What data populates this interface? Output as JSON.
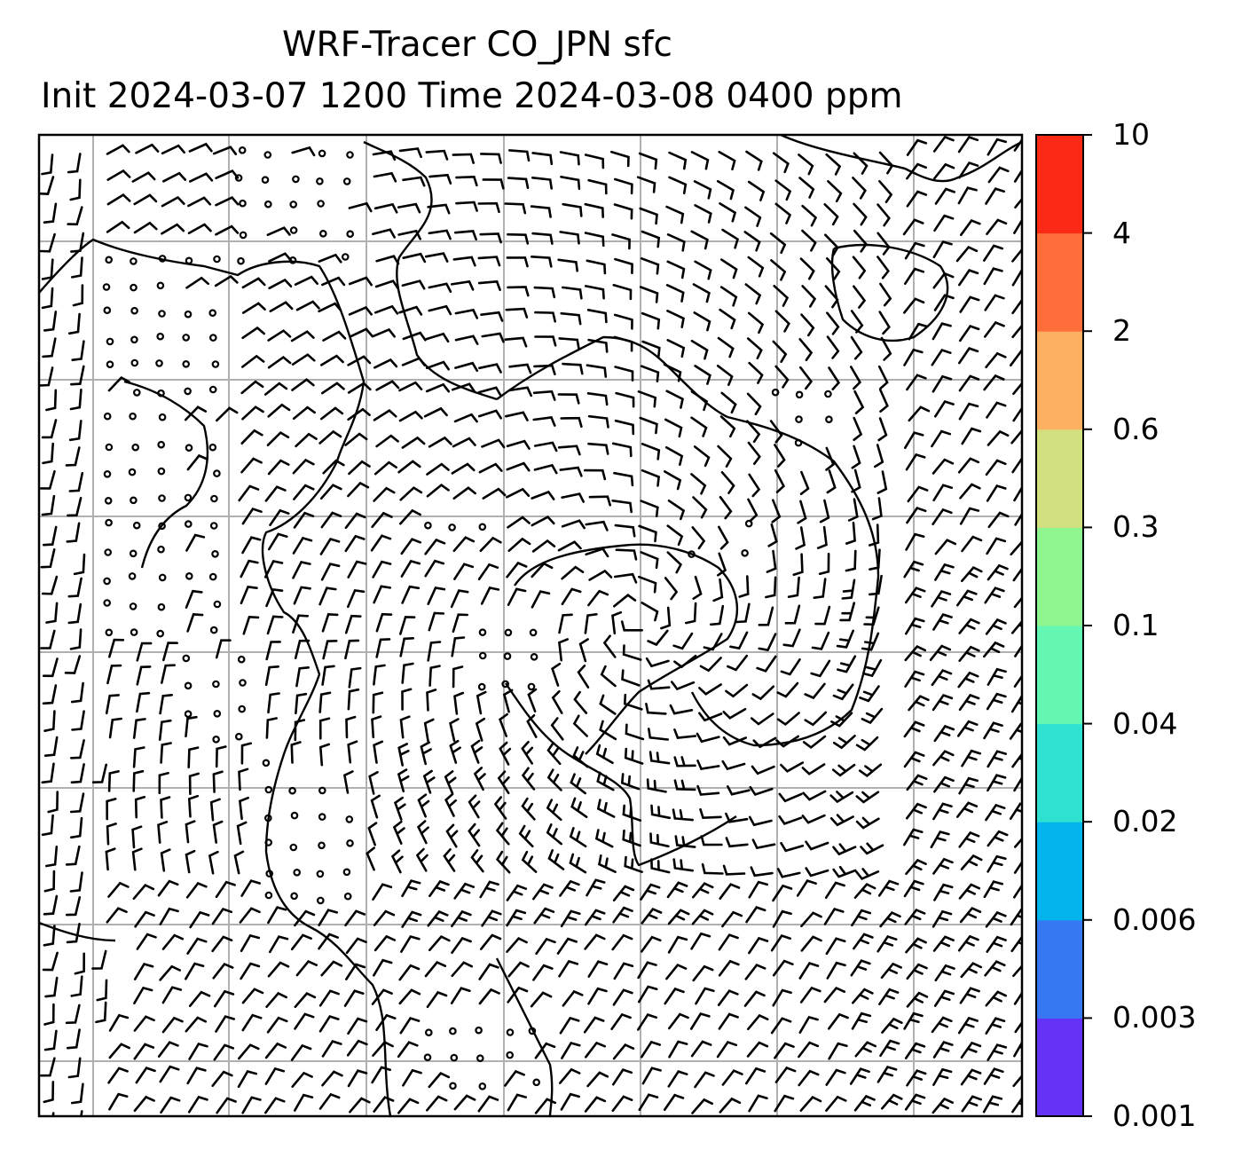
{
  "title_line1": "WRF-Tracer CO_JPN sfc",
  "title_line2": "Init 2024-03-07 1200 Time 2024-03-08 0400 ppm",
  "colorbar": {
    "levels": [
      "0.001",
      "0.003",
      "0.006",
      "0.02",
      "0.04",
      "0.1",
      "0.3",
      "0.6",
      "2",
      "4",
      "10"
    ],
    "colors": [
      "#6433f7",
      "#3778f2",
      "#02b4ec",
      "#2ee1d0",
      "#64f7b4",
      "#8ff58e",
      "#d3e07f",
      "#fdb061",
      "#fe6d3a",
      "#fc2916"
    ]
  },
  "map": {
    "gridline_color": "#b0b0b0",
    "coastline_color": "#000000",
    "barb_color": "#000000"
  }
}
